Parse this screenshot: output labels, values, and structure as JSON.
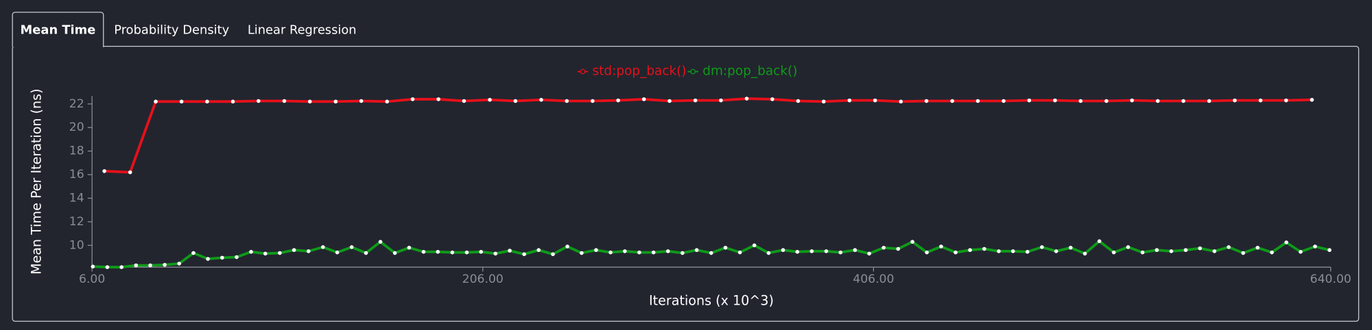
{
  "tabs": [
    "Mean Time",
    "Probability Density",
    "Linear Regression"
  ],
  "active_tab": 0,
  "chart_data": {
    "type": "line",
    "xlabel": "Iterations (x 10^3)",
    "ylabel": "Mean Time Per Iteration (ns)",
    "xlim": [
      6,
      640
    ],
    "ylim": [
      8.15,
      22.67
    ],
    "xticks": [
      {
        "value": 6,
        "label": "6.00"
      },
      {
        "value": 206,
        "label": "206.00"
      },
      {
        "value": 406,
        "label": "406.00"
      },
      {
        "value": 640,
        "label": "640.00"
      }
    ],
    "yticks": [
      10,
      12,
      14,
      16,
      18,
      20,
      22
    ],
    "grid": false,
    "legend": "top",
    "series": [
      {
        "name": "std:pop_back()",
        "color": "#e8101a",
        "x": [
          12.3,
          25.5,
          38.6,
          51.8,
          64.9,
          78.1,
          91.2,
          104.4,
          117.5,
          130.7,
          143.8,
          157.0,
          170.1,
          183.3,
          196.4,
          209.6,
          222.7,
          235.9,
          249.0,
          262.2,
          275.3,
          288.5,
          301.6,
          314.8,
          327.9,
          341.1,
          354.2,
          367.4,
          380.5,
          393.7,
          406.8,
          420.0,
          433.1,
          446.3,
          459.4,
          472.6,
          485.7,
          498.9,
          512.0,
          525.2,
          538.3,
          551.5,
          564.6,
          577.8,
          590.9,
          604.1,
          617.2,
          630.4
        ],
        "values": [
          16.3,
          16.2,
          22.2,
          22.2,
          22.2,
          22.2,
          22.25,
          22.25,
          22.2,
          22.2,
          22.25,
          22.2,
          22.4,
          22.4,
          22.25,
          22.35,
          22.25,
          22.35,
          22.25,
          22.25,
          22.3,
          22.4,
          22.25,
          22.3,
          22.3,
          22.45,
          22.4,
          22.25,
          22.2,
          22.3,
          22.3,
          22.2,
          22.25,
          22.25,
          22.25,
          22.25,
          22.3,
          22.3,
          22.25,
          22.25,
          22.3,
          22.25,
          22.25,
          22.25,
          22.3,
          22.3,
          22.3,
          22.35
        ]
      },
      {
        "name": "dm:pop_back()",
        "color": "#0f9a1a",
        "x": [
          6.4,
          13.8,
          21.1,
          28.5,
          35.8,
          43.2,
          50.6,
          57.9,
          65.3,
          72.6,
          80.0,
          87.4,
          94.7,
          102.1,
          109.4,
          116.8,
          124.2,
          131.5,
          138.9,
          146.2,
          153.6,
          161.0,
          168.3,
          175.7,
          183.0,
          190.4,
          197.8,
          205.1,
          212.5,
          219.8,
          227.2,
          234.6,
          241.9,
          249.3,
          256.6,
          264.0,
          271.4,
          278.7,
          286.1,
          293.4,
          300.8,
          308.2,
          315.5,
          322.9,
          330.2,
          337.6,
          345.0,
          352.3,
          359.7,
          367.0,
          374.4,
          381.8,
          389.1,
          396.5,
          403.8,
          411.2,
          418.6,
          425.9,
          433.3,
          440.6,
          448.0,
          455.4,
          462.7,
          470.1,
          477.4,
          484.8,
          492.2,
          499.5,
          506.9,
          514.2,
          521.6,
          529.0,
          536.3,
          543.7,
          551.0,
          558.4,
          565.8,
          573.1,
          580.5,
          587.8,
          595.2,
          602.6,
          609.9,
          617.3,
          624.6,
          632.0,
          639.4
        ],
        "values": [
          8.2,
          8.15,
          8.15,
          8.3,
          8.3,
          8.35,
          8.45,
          9.35,
          8.85,
          8.95,
          9.0,
          9.45,
          9.3,
          9.35,
          9.6,
          9.5,
          9.85,
          9.4,
          9.85,
          9.35,
          10.3,
          9.35,
          9.8,
          9.45,
          9.45,
          9.4,
          9.4,
          9.45,
          9.3,
          9.55,
          9.25,
          9.6,
          9.25,
          9.9,
          9.35,
          9.6,
          9.4,
          9.5,
          9.4,
          9.4,
          9.5,
          9.35,
          9.6,
          9.35,
          9.8,
          9.4,
          10.0,
          9.35,
          9.6,
          9.45,
          9.5,
          9.5,
          9.4,
          9.6,
          9.3,
          9.8,
          9.7,
          10.3,
          9.4,
          9.9,
          9.4,
          9.6,
          9.7,
          9.5,
          9.5,
          9.45,
          9.85,
          9.5,
          9.8,
          9.3,
          10.35,
          9.4,
          9.85,
          9.4,
          9.6,
          9.5,
          9.6,
          9.75,
          9.5,
          9.85,
          9.35,
          9.8,
          9.4,
          10.25,
          9.45,
          9.9,
          9.6
        ]
      }
    ]
  }
}
